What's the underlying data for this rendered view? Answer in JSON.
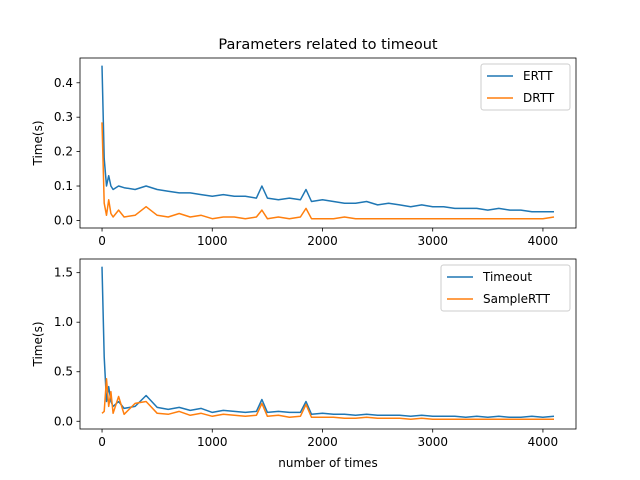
{
  "chart_data": [
    {
      "type": "line",
      "title": "Parameters related to timeout",
      "xlabel": "",
      "ylabel": "Time(s)",
      "xlim": [
        -200,
        4300
      ],
      "ylim": [
        -0.022,
        0.472
      ],
      "xticks": [
        0,
        1000,
        2000,
        3000,
        4000
      ],
      "yticks": [
        0.0,
        0.1,
        0.2,
        0.3,
        0.4
      ],
      "ytick_labels": [
        "0.0",
        "0.1",
        "0.2",
        "0.3",
        "0.4"
      ],
      "legend_position": "top-right",
      "series": [
        {
          "name": "ERTT",
          "color": "#1f77b4",
          "x": [
            0,
            20,
            40,
            60,
            80,
            100,
            150,
            200,
            300,
            400,
            500,
            600,
            700,
            800,
            900,
            1000,
            1100,
            1200,
            1300,
            1400,
            1450,
            1500,
            1600,
            1700,
            1800,
            1850,
            1900,
            2000,
            2100,
            2200,
            2300,
            2400,
            2500,
            2600,
            2700,
            2800,
            2900,
            3000,
            3100,
            3200,
            3300,
            3400,
            3500,
            3600,
            3700,
            3800,
            3900,
            4000,
            4100
          ],
          "values": [
            0.45,
            0.18,
            0.1,
            0.13,
            0.1,
            0.09,
            0.1,
            0.095,
            0.09,
            0.1,
            0.09,
            0.085,
            0.08,
            0.08,
            0.075,
            0.07,
            0.075,
            0.07,
            0.07,
            0.065,
            0.1,
            0.065,
            0.06,
            0.065,
            0.06,
            0.09,
            0.055,
            0.06,
            0.055,
            0.05,
            0.05,
            0.055,
            0.045,
            0.05,
            0.045,
            0.04,
            0.045,
            0.04,
            0.04,
            0.035,
            0.035,
            0.035,
            0.03,
            0.035,
            0.03,
            0.03,
            0.025,
            0.025,
            0.025
          ]
        },
        {
          "name": "DRTT",
          "color": "#ff7f0e",
          "x": [
            0,
            20,
            40,
            60,
            80,
            100,
            150,
            200,
            300,
            400,
            500,
            600,
            700,
            800,
            900,
            1000,
            1100,
            1200,
            1300,
            1400,
            1450,
            1500,
            1600,
            1700,
            1800,
            1850,
            1900,
            2000,
            2100,
            2200,
            2300,
            2400,
            2500,
            2600,
            2700,
            2800,
            2900,
            3000,
            3100,
            3200,
            3300,
            3400,
            3500,
            3600,
            3700,
            3800,
            3900,
            4000,
            4100
          ],
          "values": [
            0.285,
            0.05,
            0.015,
            0.06,
            0.02,
            0.01,
            0.03,
            0.01,
            0.015,
            0.04,
            0.015,
            0.01,
            0.02,
            0.01,
            0.015,
            0.005,
            0.01,
            0.01,
            0.005,
            0.01,
            0.03,
            0.005,
            0.01,
            0.005,
            0.01,
            0.035,
            0.005,
            0.005,
            0.005,
            0.01,
            0.005,
            0.005,
            0.005,
            0.005,
            0.005,
            0.005,
            0.005,
            0.005,
            0.005,
            0.005,
            0.005,
            0.005,
            0.005,
            0.005,
            0.005,
            0.005,
            0.005,
            0.005,
            0.01
          ]
        }
      ]
    },
    {
      "type": "line",
      "title": "",
      "xlabel": "number of times",
      "ylabel": "Time(s)",
      "xlim": [
        -200,
        4300
      ],
      "ylim": [
        -0.078,
        1.638
      ],
      "xticks": [
        0,
        1000,
        2000,
        3000,
        4000
      ],
      "yticks": [
        0.0,
        0.5,
        1.0,
        1.5
      ],
      "ytick_labels": [
        "0.0",
        "0.5",
        "1.0",
        "1.5"
      ],
      "legend_position": "top-right",
      "series": [
        {
          "name": "Timeout",
          "color": "#1f77b4",
          "x": [
            0,
            20,
            40,
            60,
            80,
            100,
            150,
            200,
            300,
            400,
            500,
            600,
            700,
            800,
            900,
            1000,
            1100,
            1200,
            1300,
            1400,
            1450,
            1500,
            1600,
            1700,
            1800,
            1850,
            1900,
            2000,
            2100,
            2200,
            2300,
            2400,
            2500,
            2600,
            2700,
            2800,
            2900,
            3000,
            3100,
            3200,
            3300,
            3400,
            3500,
            3600,
            3700,
            3800,
            3900,
            4000,
            4100
          ],
          "values": [
            1.56,
            0.65,
            0.2,
            0.35,
            0.2,
            0.15,
            0.2,
            0.13,
            0.15,
            0.26,
            0.14,
            0.12,
            0.14,
            0.11,
            0.13,
            0.09,
            0.11,
            0.1,
            0.09,
            0.1,
            0.22,
            0.09,
            0.1,
            0.09,
            0.09,
            0.2,
            0.07,
            0.08,
            0.07,
            0.07,
            0.06,
            0.07,
            0.06,
            0.06,
            0.06,
            0.05,
            0.06,
            0.05,
            0.05,
            0.05,
            0.04,
            0.05,
            0.04,
            0.05,
            0.04,
            0.04,
            0.05,
            0.04,
            0.05
          ]
        },
        {
          "name": "SampleRTT",
          "color": "#ff7f0e",
          "x": [
            0,
            20,
            40,
            60,
            80,
            100,
            150,
            200,
            300,
            400,
            500,
            600,
            700,
            800,
            900,
            1000,
            1100,
            1200,
            1300,
            1400,
            1450,
            1500,
            1600,
            1700,
            1800,
            1850,
            1900,
            2000,
            2100,
            2200,
            2300,
            2400,
            2500,
            2600,
            2700,
            2800,
            2900,
            3000,
            3100,
            3200,
            3300,
            3400,
            3500,
            3600,
            3700,
            3800,
            3900,
            4000,
            4100
          ],
          "values": [
            0.08,
            0.1,
            0.43,
            0.15,
            0.3,
            0.08,
            0.25,
            0.07,
            0.18,
            0.2,
            0.08,
            0.07,
            0.1,
            0.06,
            0.08,
            0.05,
            0.07,
            0.06,
            0.05,
            0.06,
            0.18,
            0.05,
            0.06,
            0.04,
            0.05,
            0.17,
            0.04,
            0.04,
            0.04,
            0.03,
            0.03,
            0.04,
            0.03,
            0.03,
            0.03,
            0.02,
            0.03,
            0.02,
            0.02,
            0.02,
            0.02,
            0.02,
            0.02,
            0.02,
            0.02,
            0.02,
            0.02,
            0.02,
            0.02
          ]
        }
      ]
    }
  ]
}
